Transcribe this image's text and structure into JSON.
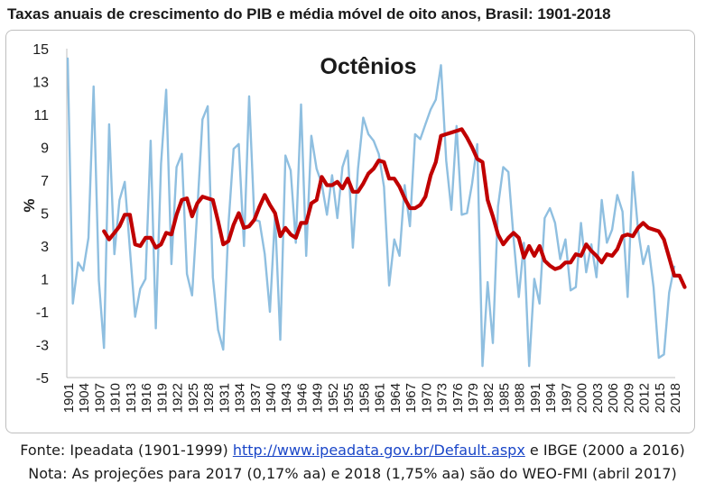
{
  "chart_data": {
    "type": "line",
    "title": "Taxas anuais de crescimento do PIB e média móvel de oito anos, Brasil: 1901-2018",
    "annotation": "Octênios",
    "ylabel": "%",
    "ylim": [
      -5,
      15
    ],
    "yticks": [
      -5,
      -3,
      -1,
      1,
      3,
      5,
      7,
      9,
      11,
      13,
      15
    ],
    "xlim": [
      1901,
      2018
    ],
    "xticks": [
      1901,
      1904,
      1907,
      1910,
      1913,
      1916,
      1919,
      1922,
      1925,
      1928,
      1931,
      1934,
      1937,
      1940,
      1943,
      1946,
      1949,
      1952,
      1955,
      1958,
      1961,
      1964,
      1967,
      1970,
      1973,
      1976,
      1979,
      1982,
      1985,
      1988,
      1991,
      1994,
      1997,
      2000,
      2003,
      2006,
      2009,
      2012,
      2015,
      2018
    ],
    "grid": false,
    "series": [
      {
        "role": "annual",
        "color": "#8fbfe0",
        "x_start": 1901,
        "values": [
          14.4,
          -0.5,
          2,
          1.5,
          3.5,
          12.7,
          0.9,
          -3.2,
          10.4,
          2.5,
          5.8,
          6.9,
          2.8,
          -1.3,
          0.4,
          1,
          9.4,
          -2,
          8,
          12.5,
          1.9,
          7.8,
          8.6,
          1.3,
          0,
          5.2,
          10.7,
          11.5,
          1.1,
          -2.1,
          -3.3,
          4.3,
          8.9,
          9.2,
          3,
          12.1,
          4.6,
          4.5,
          2.5,
          -1,
          4.9,
          -2.7,
          8.5,
          7.6,
          3.2,
          11.6,
          2.4,
          9.7,
          7.7,
          6.8,
          4.9,
          7.3,
          4.7,
          7.8,
          8.8,
          2.9,
          7.7,
          10.8,
          9.8,
          9.4,
          8.6,
          6.6,
          0.6,
          3.4,
          2.4,
          6.7,
          4.2,
          9.8,
          9.5,
          10.4,
          11.3,
          11.9,
          14,
          8.2,
          5.2,
          10.3,
          4.9,
          5,
          6.8,
          9.2,
          -4.3,
          0.8,
          -2.9,
          5.4,
          7.8,
          7.5,
          3.5,
          -0.1,
          3.2,
          -4.3,
          1,
          -0.5,
          4.7,
          5.3,
          4.4,
          2.2,
          3.4,
          0.3,
          0.5,
          4.4,
          1.4,
          3.1,
          1.1,
          5.8,
          3.2,
          4,
          6.1,
          5.1,
          -0.1,
          7.5,
          4,
          1.9,
          3,
          0.5,
          -3.8,
          -3.6,
          0.17,
          1.75
        ]
      },
      {
        "role": "octenio_moving_average",
        "color": "#c00000",
        "x_start": 1908,
        "values": [
          3.9,
          3.4,
          3.8,
          4.2,
          4.9,
          4.9,
          3.1,
          3.0,
          3.5,
          3.5,
          2.9,
          3.1,
          3.8,
          3.7,
          4.9,
          5.8,
          5.9,
          4.8,
          5.6,
          6.0,
          5.9,
          5.8,
          4.5,
          3.1,
          3.3,
          4.3,
          5.0,
          4.1,
          4.2,
          4.6,
          5.4,
          6.1,
          5.5,
          5.0,
          3.6,
          4.1,
          3.7,
          3.5,
          4.4,
          4.4,
          5.6,
          5.8,
          7.2,
          6.7,
          6.7,
          6.9,
          6.5,
          7.1,
          6.3,
          6.3,
          6.8,
          7.4,
          7.7,
          8.2,
          8.1,
          7.1,
          7.1,
          6.6,
          5.9,
          5.3,
          5.3,
          5.5,
          6.0,
          7.3,
          8.1,
          9.7,
          9.8,
          9.9,
          10.0,
          10.1,
          9.6,
          9.0,
          8.3,
          8.1,
          5.8,
          4.8,
          3.7,
          3.1,
          3.5,
          3.8,
          3.5,
          2.3,
          3.0,
          2.4,
          3.0,
          2.1,
          1.8,
          1.6,
          1.7,
          2.0,
          2.0,
          2.5,
          2.4,
          3.1,
          2.7,
          2.4,
          2.0,
          2.5,
          2.4,
          2.8,
          3.6,
          3.7,
          3.6,
          4.1,
          4.4,
          4.1,
          4.0,
          3.9,
          3.4,
          2.3,
          1.2,
          1.2,
          0.5
        ]
      }
    ]
  },
  "footer": {
    "line1_prefix": "Fonte: Ipeadata (1901-1999) ",
    "line1_link": "http://www.ipeadata.gov.br/Default.aspx",
    "line1_suffix": " e IBGE (2000 a 2016)",
    "line2": "Nota: As projeções para 2017 (0,17% aa) e 2018 (1,75% aa) são do WEO-FMI (abril 2017)"
  }
}
